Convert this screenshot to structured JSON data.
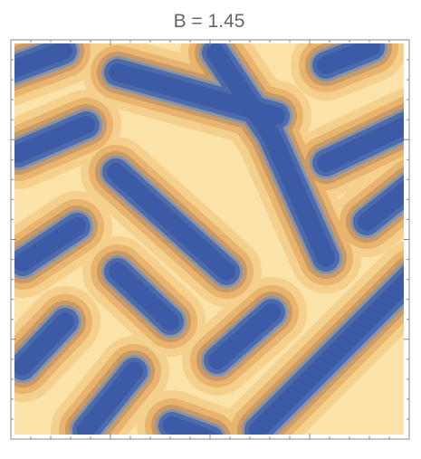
{
  "chart_data": {
    "type": "contour",
    "title": "B = 1.45"
  }
}
